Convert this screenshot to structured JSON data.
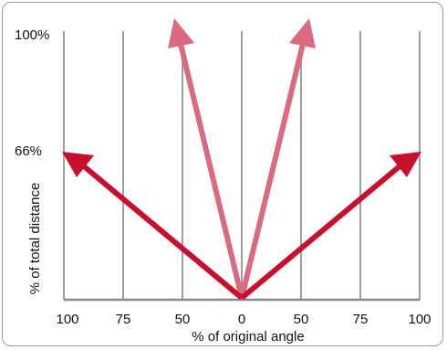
{
  "figure": {
    "x_axis_label": "% of original angle",
    "y_axis_label": "% of total distance",
    "x_ticks": [
      "100",
      "75",
      "50",
      "0",
      "50",
      "75",
      "100"
    ],
    "y_ticks": [
      "100%",
      "66%"
    ]
  },
  "arrows": [
    {
      "name": "wide-left-arrow",
      "angle_pct": -100,
      "distance_pct": 66,
      "color": "#c8102e"
    },
    {
      "name": "narrow-left-arrow",
      "angle_pct": -50,
      "distance_pct": 100,
      "color": "#d96a80"
    },
    {
      "name": "narrow-right-arrow",
      "angle_pct": 50,
      "distance_pct": 100,
      "color": "#d96a80"
    },
    {
      "name": "wide-right-arrow",
      "angle_pct": 100,
      "distance_pct": 66,
      "color": "#c8102e"
    }
  ],
  "colors": {
    "grid": "#9e9e9e",
    "strong_arrow": "#c8102e",
    "light_arrow": "#d96a80"
  }
}
